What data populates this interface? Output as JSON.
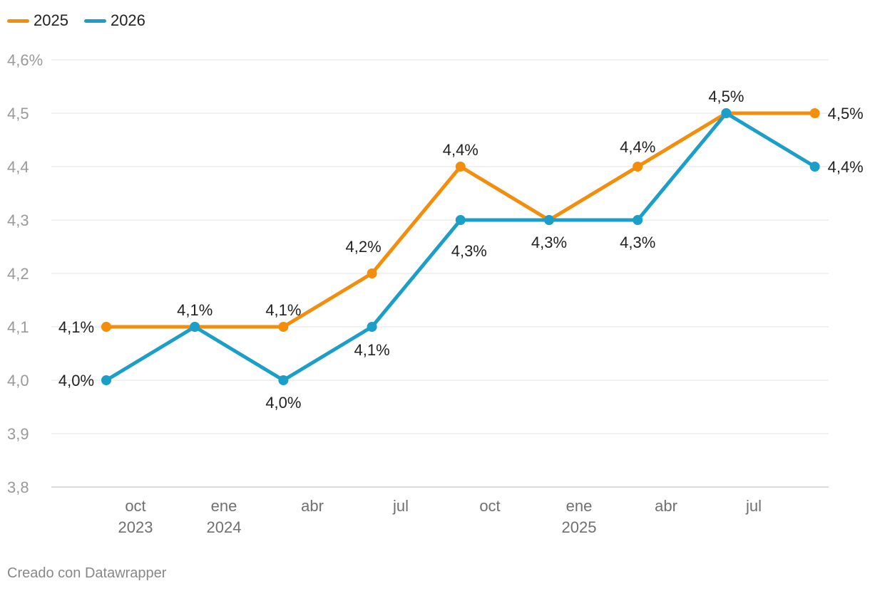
{
  "chart_data": {
    "type": "line",
    "title": "",
    "xlabel": "",
    "ylabel": "",
    "ylim": [
      3.8,
      4.6
    ],
    "y_ticks": [
      "4,6%",
      "4,5",
      "4,4",
      "4,3",
      "4,2",
      "4,1",
      "4,0",
      "3,9",
      "3,8"
    ],
    "y_tick_values": [
      4.6,
      4.5,
      4.4,
      4.3,
      4.2,
      4.1,
      4.0,
      3.9,
      3.8
    ],
    "x_ticks": [
      {
        "month": "oct",
        "year": "2023"
      },
      {
        "month": "ene",
        "year": "2024"
      },
      {
        "month": "abr",
        "year": ""
      },
      {
        "month": "jul",
        "year": ""
      },
      {
        "month": "oct",
        "year": ""
      },
      {
        "month": "ene",
        "year": "2025"
      },
      {
        "month": "abr",
        "year": ""
      },
      {
        "month": "jul",
        "year": ""
      }
    ],
    "x": [
      "sep 2023",
      "dic 2023",
      "mar 2024",
      "jun 2024",
      "sep 2024",
      "dic 2024",
      "mar 2025",
      "jun 2025",
      "sep 2025"
    ],
    "series": [
      {
        "name": "2025",
        "color": "#f28e0c",
        "values": [
          4.1,
          4.1,
          4.1,
          4.2,
          4.4,
          4.3,
          4.4,
          4.5,
          4.5
        ],
        "labels": [
          "4,1%",
          "4,1%",
          "4,1%",
          "4,2%",
          "4,4%",
          "",
          "4,4%",
          "4,5%",
          "4,5%"
        ]
      },
      {
        "name": "2026",
        "color": "#1b9fc9",
        "values": [
          4.0,
          4.1,
          4.0,
          4.1,
          4.3,
          4.3,
          4.3,
          4.5,
          4.4
        ],
        "labels": [
          "4,0%",
          "",
          "4,0%",
          "4,1%",
          "4,3%",
          "4,3%",
          "4,3%",
          "",
          "4,4%"
        ]
      }
    ],
    "legend": "top-left",
    "grid": true
  },
  "footer": {
    "credit": "Creado con Datawrapper"
  }
}
